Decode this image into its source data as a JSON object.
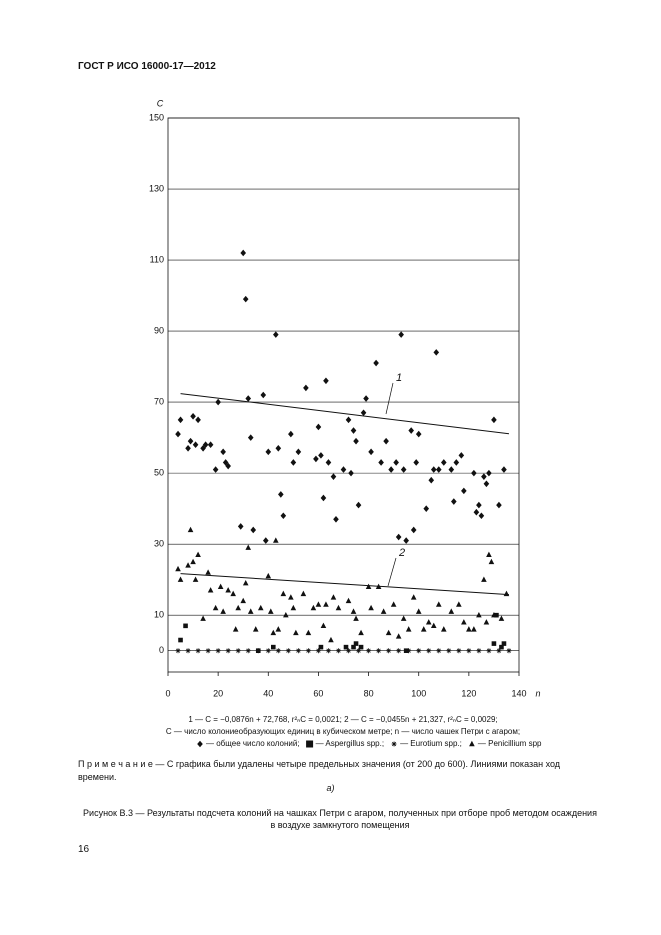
{
  "header": "ГОСТ Р ИСО 16000-17—2012",
  "chart_data": {
    "type": "scatter",
    "y_label": "C",
    "x_label": "n",
    "xlim": [
      0,
      140
    ],
    "xticks": [
      0,
      20,
      40,
      60,
      80,
      100,
      120,
      140
    ],
    "ylim": [
      -6,
      150
    ],
    "yticks": [
      0,
      10,
      30,
      50,
      70,
      90,
      110,
      130,
      150
    ],
    "grid": true,
    "formula": "1 — C = −0,0876n + 72,768,  r²ₙC = 0,0021; 2 — C = −0,0455n + 21,327,  r²ₙC = 0,0029;",
    "definition": "C — число колониеобразующих единиц в кубическом метре; n — число чашек Петри с агаром;",
    "trend_lines": [
      {
        "label": "1",
        "x": [
          5,
          136
        ],
        "values": [
          72.4,
          61.1
        ]
      },
      {
        "label": "2",
        "x": [
          5,
          136
        ],
        "values": [
          21.7,
          15.8
        ]
      }
    ],
    "series": [
      {
        "name": "— общее число колоний;",
        "marker": "diamond",
        "color": "#111",
        "x": [
          4,
          5,
          8,
          9,
          10,
          11,
          12,
          14,
          15,
          17,
          19,
          20,
          22,
          23,
          24,
          29,
          30,
          31,
          32,
          33,
          34,
          38,
          39,
          40,
          43,
          44,
          45,
          46,
          49,
          50,
          52,
          55,
          59,
          60,
          61,
          62,
          63,
          64,
          66,
          67,
          70,
          72,
          73,
          74,
          75,
          76,
          78,
          79,
          81,
          83,
          85,
          87,
          89,
          91,
          92,
          93,
          94,
          95,
          97,
          98,
          99,
          100,
          103,
          105,
          106,
          107,
          108,
          110,
          113,
          114,
          115,
          117,
          118,
          122,
          123,
          124,
          125,
          126,
          127,
          128,
          130,
          132,
          134
        ],
        "values": [
          61,
          65,
          57,
          59,
          66,
          58,
          65,
          57,
          58,
          58,
          51,
          70,
          56,
          53,
          52,
          35,
          112,
          99,
          71,
          60,
          34,
          72,
          31,
          56,
          89,
          57,
          44,
          38,
          61,
          53,
          56,
          74,
          54,
          63,
          55,
          43,
          76,
          53,
          49,
          37,
          51,
          65,
          50,
          62,
          59,
          41,
          67,
          71,
          56,
          81,
          53,
          59,
          51,
          53,
          32,
          89,
          51,
          31,
          62,
          34,
          53,
          61,
          40,
          48,
          51,
          84,
          51,
          53,
          51,
          42,
          53,
          55,
          45,
          50,
          39,
          41,
          38,
          49,
          47,
          50,
          65,
          41,
          51
        ]
      },
      {
        "name": "— Aspergillus spp.;",
        "marker": "square",
        "color": "#111",
        "x": [
          5,
          7,
          36,
          42,
          61,
          71,
          74,
          75,
          77,
          95,
          130,
          131,
          133,
          134
        ],
        "values": [
          3,
          7,
          0,
          1,
          1,
          1,
          1,
          2,
          1,
          0,
          2,
          10,
          1,
          2
        ]
      },
      {
        "name": "— Eurotium spp.;",
        "marker": "asterisk",
        "color": "#111",
        "x": [
          4,
          8,
          12,
          16,
          20,
          24,
          28,
          32,
          36,
          40,
          44,
          48,
          52,
          56,
          60,
          64,
          68,
          72,
          76,
          80,
          84,
          88,
          92,
          96,
          100,
          104,
          108,
          112,
          116,
          120,
          124,
          128,
          132,
          136
        ],
        "values": [
          0,
          0,
          0,
          0,
          0,
          0,
          0,
          0,
          0,
          0,
          0,
          0,
          0,
          0,
          0,
          0,
          0,
          0,
          0,
          0,
          0,
          0,
          0,
          0,
          0,
          0,
          0,
          0,
          0,
          0,
          0,
          0,
          0,
          0
        ]
      },
      {
        "name": "— Penicillium spp",
        "marker": "triangle",
        "color": "#111",
        "x": [
          4,
          5,
          8,
          9,
          10,
          11,
          12,
          14,
          16,
          17,
          19,
          21,
          22,
          24,
          26,
          27,
          28,
          30,
          31,
          32,
          33,
          35,
          37,
          40,
          41,
          42,
          43,
          44,
          46,
          47,
          49,
          50,
          51,
          54,
          56,
          58,
          60,
          62,
          63,
          65,
          66,
          68,
          72,
          74,
          75,
          77,
          80,
          81,
          84,
          86,
          88,
          90,
          92,
          94,
          96,
          98,
          100,
          102,
          104,
          106,
          108,
          110,
          113,
          116,
          118,
          120,
          122,
          124,
          126,
          127,
          128,
          129,
          130,
          133,
          135
        ],
        "values": [
          23,
          20,
          24,
          34,
          25,
          20,
          27,
          9,
          22,
          17,
          12,
          18,
          11,
          17,
          16,
          6,
          12,
          14,
          19,
          29,
          11,
          6,
          12,
          21,
          11,
          5,
          31,
          6,
          16,
          10,
          15,
          12,
          5,
          16,
          5,
          12,
          13,
          7,
          13,
          3,
          15,
          12,
          14,
          11,
          9,
          5,
          18,
          12,
          18,
          11,
          5,
          13,
          4,
          9,
          6,
          15,
          11,
          6,
          8,
          7,
          13,
          6,
          11,
          13,
          8,
          6,
          6,
          10,
          20,
          8,
          27,
          25,
          10,
          9,
          16
        ]
      }
    ]
  },
  "note": "П р и м е ч а н и е — С графика были удалены четыре предельных значения (от 200 до 600). Линиями показан ход времени.",
  "subfigure": "а)",
  "caption": "Рисунок В.3 — Результаты подсчета колоний на чашках Петри с агаром, полученных при отборе проб методом осаждения в воздухе замкнутого помещения",
  "page_number": "16"
}
